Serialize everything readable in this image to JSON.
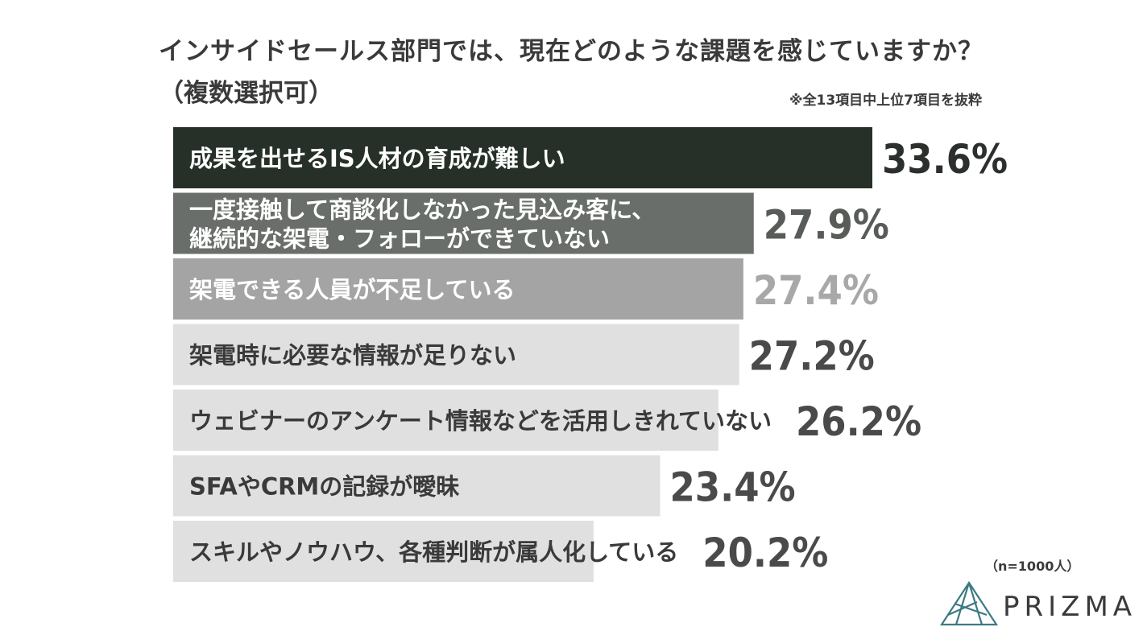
{
  "header": {
    "title": "インサイドセールス部門では、現在どのような課題を感じていますか？",
    "subtitle": "（複数選択可）",
    "note": "※全13項目中上位7項目を抜粋"
  },
  "footer": {
    "sample_size": "（n=1000人）",
    "brand": "PRIZMA"
  },
  "colors": {
    "bar_fill": [
      "#263028",
      "#696e6a",
      "#a4a4a4",
      "#e0e0e0",
      "#e0e0e0",
      "#e0e0e0",
      "#e0e0e0"
    ],
    "bar_text": [
      "#ffffff",
      "#ffffff",
      "#ffffff",
      "#3a3a3a",
      "#3a3a3a",
      "#3a3a3a",
      "#3a3a3a"
    ],
    "value_text": [
      "#2c302d",
      "#585c59",
      "#a8a8a8",
      "#4a4a4a",
      "#4a4a4a",
      "#4a4a4a",
      "#4a4a4a"
    ],
    "logo": "#3c7a83"
  },
  "chart_data": {
    "type": "bar",
    "orientation": "horizontal",
    "categories": [
      [
        "成果を出せるIS人材の育成が難しい"
      ],
      [
        "一度接触して商談化しなかった見込み客に、",
        "継続的な架電・フォローができていない"
      ],
      [
        "架電できる人員が不足している"
      ],
      [
        "架電時に必要な情報が足りない"
      ],
      [
        "ウェビナーのアンケート情報などを活用しきれていない"
      ],
      [
        "SFAやCRMの記録が曖昧"
      ],
      [
        "スキルやノウハウ、各種判断が属人化している"
      ]
    ],
    "values": [
      33.6,
      27.9,
      27.4,
      27.2,
      26.2,
      23.4,
      20.2
    ],
    "value_labels": [
      "33.6%",
      "27.9%",
      "27.4%",
      "27.2%",
      "26.2%",
      "23.4%",
      "20.2%"
    ],
    "unit": "%",
    "xlim": [
      0,
      33.6
    ]
  }
}
